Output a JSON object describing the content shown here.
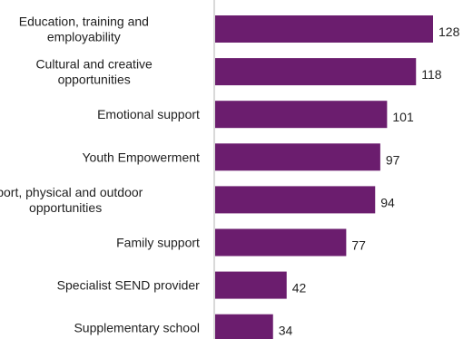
{
  "chart_data": {
    "type": "bar",
    "orientation": "horizontal",
    "categories": [
      [
        "Education, training and",
        "employability"
      ],
      [
        "Cultural and creative",
        "opportunities"
      ],
      [
        "Emotional support"
      ],
      [
        "Youth Empowerment"
      ],
      [
        "Sport, physical and outdoor",
        "opportunities"
      ],
      [
        "Family support"
      ],
      [
        "Specialist SEND provider"
      ],
      [
        "Supplementary school"
      ]
    ],
    "values": [
      128,
      118,
      101,
      97,
      94,
      77,
      42,
      34
    ],
    "xlim": [
      0,
      128
    ],
    "grid": false,
    "colors": {
      "bar": "#6b1d6e",
      "axis": "#d9d9d9",
      "text": "#1f1f1f"
    }
  }
}
